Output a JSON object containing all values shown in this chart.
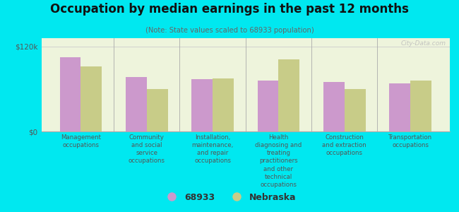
{
  "title": "Occupation by median earnings in the past 12 months",
  "subtitle": "(Note: State values scaled to 68933 population)",
  "categories": [
    "Management\noccupations",
    "Community\nand social\nservice\noccupations",
    "Installation,\nmaintenance,\nand repair\noccupations",
    "Health\ndiagnosing and\ntreating\npractitioners\nand other\ntechnical\noccupations",
    "Construction\nand extraction\noccupations",
    "Transportation\noccupations"
  ],
  "values_68933": [
    105000,
    77000,
    74000,
    72000,
    70000,
    68000
  ],
  "values_nebraska": [
    92000,
    60000,
    75000,
    102000,
    60000,
    72000
  ],
  "color_68933": "#cc99cc",
  "color_nebraska": "#c8cc88",
  "background_plot": "#eef4dc",
  "background_fig": "#00e8f0",
  "ylabel_ticks": [
    "$0",
    "$120k"
  ],
  "ytick_values": [
    0,
    120000
  ],
  "ylim": [
    0,
    132000
  ],
  "legend_label_1": "68933",
  "legend_label_2": "Nebraska",
  "watermark": "City-Data.com"
}
